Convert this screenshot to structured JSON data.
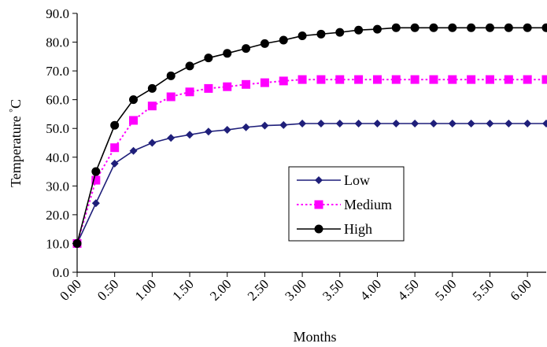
{
  "chart_data": {
    "type": "line",
    "xlabel": "Months",
    "ylabel": "Temperature",
    "ylabel_unit": "°C",
    "xlim": [
      0.0,
      6.25
    ],
    "ylim": [
      0,
      90
    ],
    "xticks": [
      "0.00",
      "0.50",
      "1.00",
      "1.50",
      "2.00",
      "2.50",
      "3.00",
      "3.50",
      "4.00",
      "4.50",
      "5.00",
      "5.50",
      "6.00"
    ],
    "yticks": [
      "0.0",
      "10.0",
      "20.0",
      "30.0",
      "40.0",
      "50.0",
      "60.0",
      "70.0",
      "80.0",
      "90.0"
    ],
    "grid": false,
    "legend_position": "center-right",
    "x": [
      0.0,
      0.25,
      0.5,
      0.75,
      1.0,
      1.25,
      1.5,
      1.75,
      2.0,
      2.25,
      2.5,
      2.75,
      3.0,
      3.25,
      3.5,
      3.75,
      4.0,
      4.25,
      4.5,
      4.75,
      5.0,
      5.25,
      5.5,
      5.75,
      6.0,
      6.25
    ],
    "series": [
      {
        "name": "Low",
        "color": "#1f1f7a",
        "marker": "diamond",
        "dash": "solid",
        "values": [
          10.0,
          24.0,
          37.8,
          42.2,
          45.0,
          46.7,
          47.8,
          48.9,
          49.5,
          50.4,
          51.0,
          51.2,
          51.7,
          51.7,
          51.7,
          51.7,
          51.7,
          51.7,
          51.7,
          51.7,
          51.7,
          51.7,
          51.7,
          51.7,
          51.7,
          51.7
        ]
      },
      {
        "name": "Medium",
        "color": "#ff00ff",
        "marker": "square",
        "dash": "dotted",
        "values": [
          10.0,
          32.0,
          43.3,
          52.8,
          57.8,
          61.0,
          62.7,
          63.9,
          64.5,
          65.3,
          65.9,
          66.5,
          67.0,
          67.0,
          67.0,
          67.0,
          67.0,
          67.0,
          67.0,
          67.0,
          67.0,
          67.0,
          67.0,
          67.0,
          67.0,
          67.0
        ]
      },
      {
        "name": "High",
        "color": "#000000",
        "marker": "circle",
        "dash": "solid",
        "values": [
          10.0,
          35.0,
          51.1,
          60.0,
          63.9,
          68.3,
          71.7,
          74.5,
          76.1,
          77.8,
          79.5,
          80.7,
          82.2,
          82.8,
          83.4,
          84.2,
          84.5,
          85.0,
          85.0,
          85.0,
          85.0,
          85.0,
          85.0,
          85.0,
          85.0,
          85.0
        ]
      }
    ]
  }
}
